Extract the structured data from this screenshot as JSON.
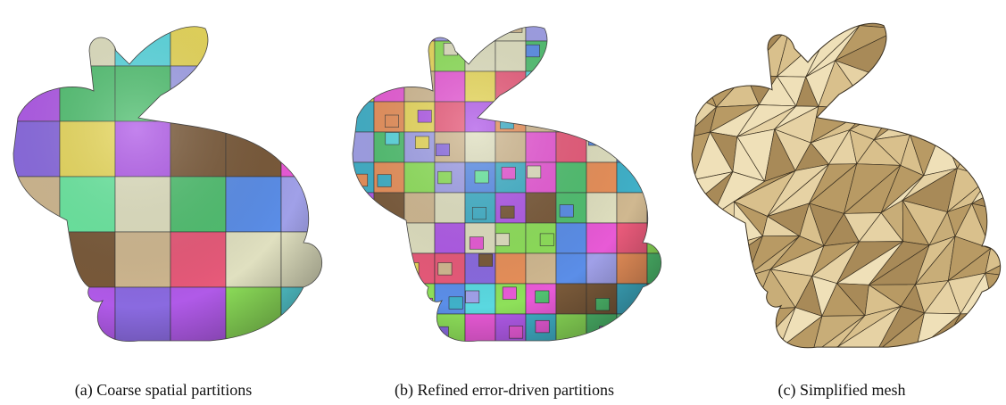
{
  "figure": {
    "panels": [
      {
        "caption": "(a) Coarse spatial partitions"
      },
      {
        "caption": "(b) Refined error-driven partitions"
      },
      {
        "caption": "(c) Simplified mesh"
      }
    ]
  }
}
